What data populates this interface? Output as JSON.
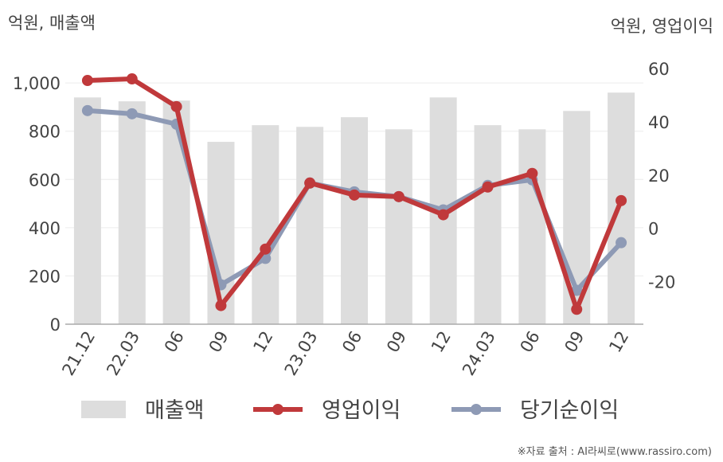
{
  "chart_data": {
    "type": "combo",
    "y_axis_title": "억원, 매출액",
    "y2_axis_title": "억원, 영업이익",
    "source": "※자료 출처 : AI라씨로(www.rassiro.com)",
    "categories": [
      "21.12",
      "22.03",
      "06",
      "09",
      "12",
      "23.03",
      "06",
      "09",
      "12",
      "24.03",
      "06",
      "09",
      "12"
    ],
    "series": [
      {
        "name": "매출액",
        "type": "bar",
        "color": "#dddddd",
        "values": [
          940,
          924,
          927,
          756,
          825,
          818,
          858,
          808,
          940,
          825,
          808,
          884,
          960
        ]
      },
      {
        "name": "영업이익",
        "type": "line",
        "axis": "y2",
        "color": "#c0393b",
        "values": [
          55.5,
          56.1,
          45.7,
          -29,
          -7.8,
          17,
          12.5,
          11.9,
          5.1,
          15.5,
          20.6,
          -30.4,
          10.4
        ]
      },
      {
        "name": "당기순이익",
        "type": "line",
        "axis": "y2",
        "color": "#8e9ab5",
        "values": [
          44.2,
          43,
          39.1,
          -21.2,
          -11.3,
          17,
          13.7,
          11.9,
          6.9,
          16.1,
          18.2,
          -23.3,
          -5.4
        ]
      }
    ],
    "ylim": [
      0,
      1060
    ],
    "yticks": [
      0,
      200,
      400,
      600,
      800,
      {
        "value": 1000,
        "label": "1,000"
      }
    ],
    "y2lim": [
      -36,
      60
    ],
    "y2ticks": [
      -20,
      0,
      20,
      40,
      60
    ],
    "grid": true,
    "legend": "bottom"
  }
}
